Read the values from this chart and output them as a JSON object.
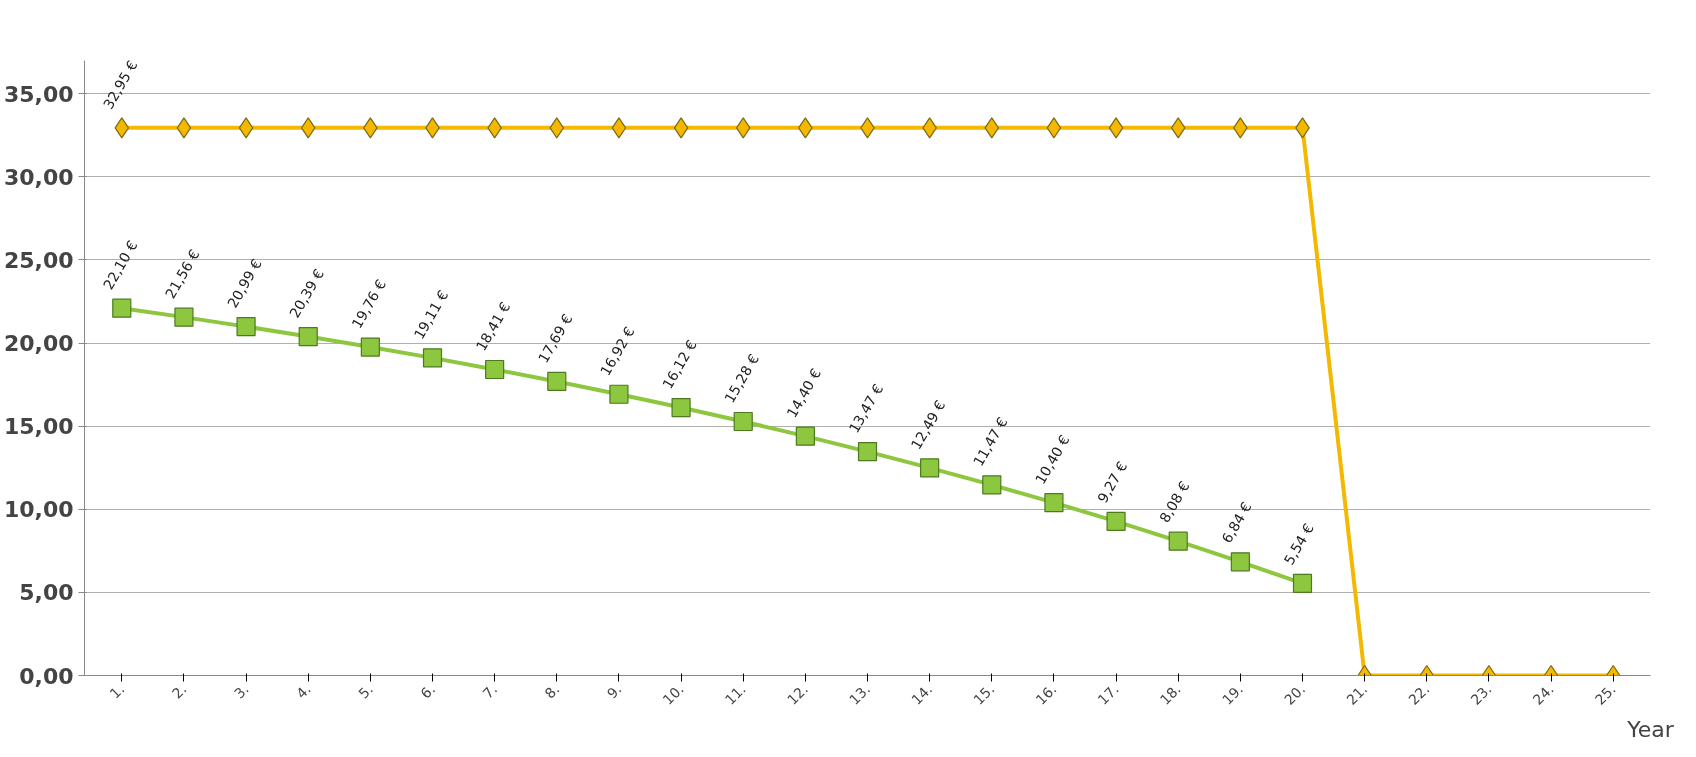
{
  "chart_data": {
    "type": "line",
    "xlabel": "Year",
    "categories": [
      "1.",
      "2.",
      "3.",
      "4.",
      "5.",
      "6.",
      "7.",
      "8.",
      "9.",
      "10.",
      "11.",
      "12.",
      "13.",
      "14.",
      "15.",
      "16.",
      "17.",
      "18.",
      "19.",
      "20.",
      "21.",
      "22.",
      "23.",
      "24.",
      "25."
    ],
    "series": [
      {
        "color": "#f5b800",
        "marker": "diamond",
        "values": [
          32.95,
          32.95,
          32.95,
          32.95,
          32.95,
          32.95,
          32.95,
          32.95,
          32.95,
          32.95,
          32.95,
          32.95,
          32.95,
          32.95,
          32.95,
          32.95,
          32.95,
          32.95,
          32.95,
          32.95,
          0,
          0,
          0,
          0,
          0
        ],
        "value_labels": [
          "32,95 €",
          null,
          null,
          null,
          null,
          null,
          null,
          null,
          null,
          null,
          null,
          null,
          null,
          null,
          null,
          null,
          null,
          null,
          null,
          null,
          null,
          null,
          null,
          null,
          null
        ]
      },
      {
        "color": "#8dc63f",
        "marker": "square",
        "values": [
          22.1,
          21.56,
          20.99,
          20.39,
          19.76,
          19.11,
          18.41,
          17.69,
          16.92,
          16.12,
          15.28,
          14.4,
          13.47,
          12.49,
          11.47,
          10.4,
          9.27,
          8.08,
          6.84,
          5.54,
          null,
          null,
          null,
          null,
          null
        ],
        "value_labels": [
          "22,10 €",
          "21,56 €",
          "20,99 €",
          "20,39 €",
          "19,76 €",
          "19,11 €",
          "18,41 €",
          "17,69 €",
          "16,92 €",
          "16,12 €",
          "15,28 €",
          "14,40 €",
          "13,47 €",
          "12,49 €",
          "11,47 €",
          "10,40 €",
          "9,27 €",
          "8,08 €",
          "6,84 €",
          "5,54 €",
          null,
          null,
          null,
          null,
          null
        ]
      }
    ],
    "ylim": [
      0,
      37
    ],
    "yticks": [
      {
        "value": 0,
        "label": "0,00"
      },
      {
        "value": 5,
        "label": "5,00"
      },
      {
        "value": 10,
        "label": "10,00"
      },
      {
        "value": 15,
        "label": "15,00"
      },
      {
        "value": 20,
        "label": "20,00"
      },
      {
        "value": 25,
        "label": "25,00"
      },
      {
        "value": 30,
        "label": "30,00"
      },
      {
        "value": 35,
        "label": "35,00"
      }
    ],
    "grid": "y",
    "line_style": "solid"
  }
}
